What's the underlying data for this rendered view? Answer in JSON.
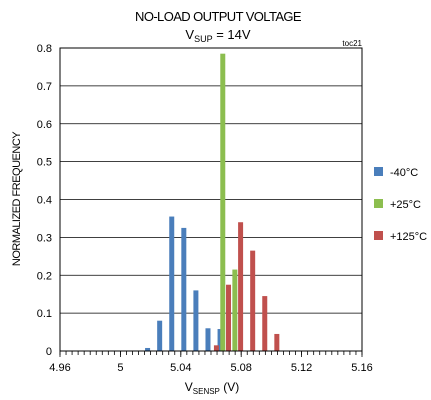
{
  "chart_data": {
    "type": "bar",
    "title": "NO-LOAD OUTPUT VOLTAGE",
    "subtitle": {
      "main": "V",
      "sub": "SUP",
      "rest": " = 14V"
    },
    "tag": "toc21",
    "xlabel": {
      "main": "V",
      "sub": "SENSP",
      "rest": " (V)"
    },
    "ylabel": "NORMALIZED FREQUENCY",
    "xlim": [
      4.96,
      5.16
    ],
    "ylim": [
      0,
      0.8
    ],
    "x_ticks": [
      "4.96",
      "5",
      "5.04",
      "5.08",
      "5.12",
      "5.16"
    ],
    "x_tick_values": [
      4.96,
      5.0,
      5.04,
      5.08,
      5.12,
      5.16
    ],
    "y_ticks": [
      "0",
      "0.1",
      "0.2",
      "0.3",
      "0.4",
      "0.5",
      "0.6",
      "0.7",
      "0.8"
    ],
    "y_tick_values": [
      0,
      0.1,
      0.2,
      0.3,
      0.4,
      0.5,
      0.6,
      0.7,
      0.8
    ],
    "grid": true,
    "legend_position": "right",
    "series": [
      {
        "name": "-40°C",
        "color": "#4a7ebb",
        "x": [
          5.018,
          5.026,
          5.034,
          5.042,
          5.05,
          5.058,
          5.066
        ],
        "values": [
          0.008,
          0.08,
          0.355,
          0.325,
          0.16,
          0.06,
          0.058
        ]
      },
      {
        "name": "+25°C",
        "color": "#8cbe4f",
        "x": [
          5.0678,
          5.0758
        ],
        "values": [
          0.785,
          0.215
        ]
      },
      {
        "name": "+125°C",
        "color": "#c0504d",
        "x": [
          5.0636,
          5.0716,
          5.0796,
          5.0876,
          5.0956,
          5.1036
        ],
        "values": [
          0.015,
          0.175,
          0.34,
          0.265,
          0.145,
          0.045
        ]
      }
    ]
  }
}
